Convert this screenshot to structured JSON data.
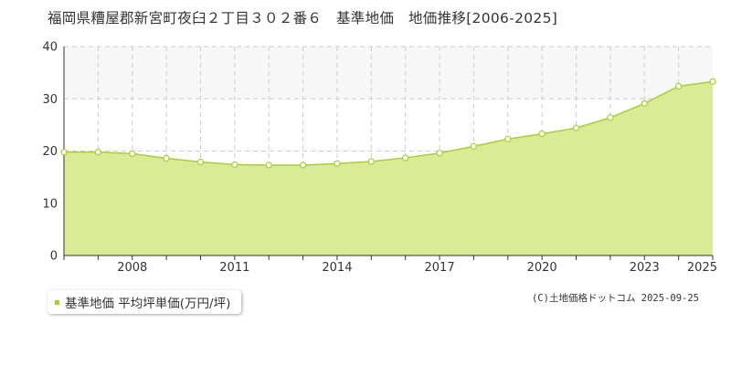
{
  "title": "福岡県糟屋郡新宮町夜臼２丁目３０２番６　基準地価　地価推移[2006-2025]",
  "legend_label": "基準地価 平均坪単価(万円/坪)",
  "copyright": "(C)土地価格ドットコム 2025-09-25",
  "colors": {
    "area_fill": "#dbeb95",
    "line": "#a8cc3c",
    "band": "#f7f7f7",
    "grid": "#cccccc",
    "marker_fill": "#ffffff"
  },
  "chart_data": {
    "type": "area",
    "title": "福岡県糟屋郡新宮町夜臼２丁目３０２番６　基準地価　地価推移[2006-2025]",
    "xlabel": "",
    "ylabel": "",
    "xlim": [
      2006,
      2025
    ],
    "ylim": [
      0,
      40
    ],
    "yticks": [
      0,
      10,
      20,
      30,
      40
    ],
    "xticks": [
      2008,
      2011,
      2014,
      2017,
      2020,
      2023,
      2025
    ],
    "grid": true,
    "legend_position": "bottom-left",
    "series": [
      {
        "name": "基準地価 平均坪単価(万円/坪)",
        "x": [
          2006,
          2007,
          2008,
          2009,
          2010,
          2011,
          2012,
          2013,
          2014,
          2015,
          2016,
          2017,
          2018,
          2019,
          2020,
          2021,
          2022,
          2023,
          2024,
          2025
        ],
        "y": [
          19.8,
          19.8,
          19.5,
          18.6,
          17.9,
          17.4,
          17.3,
          17.3,
          17.6,
          18.0,
          18.7,
          19.6,
          20.9,
          22.3,
          23.3,
          24.4,
          26.4,
          29.1,
          32.4,
          33.3
        ]
      }
    ]
  }
}
